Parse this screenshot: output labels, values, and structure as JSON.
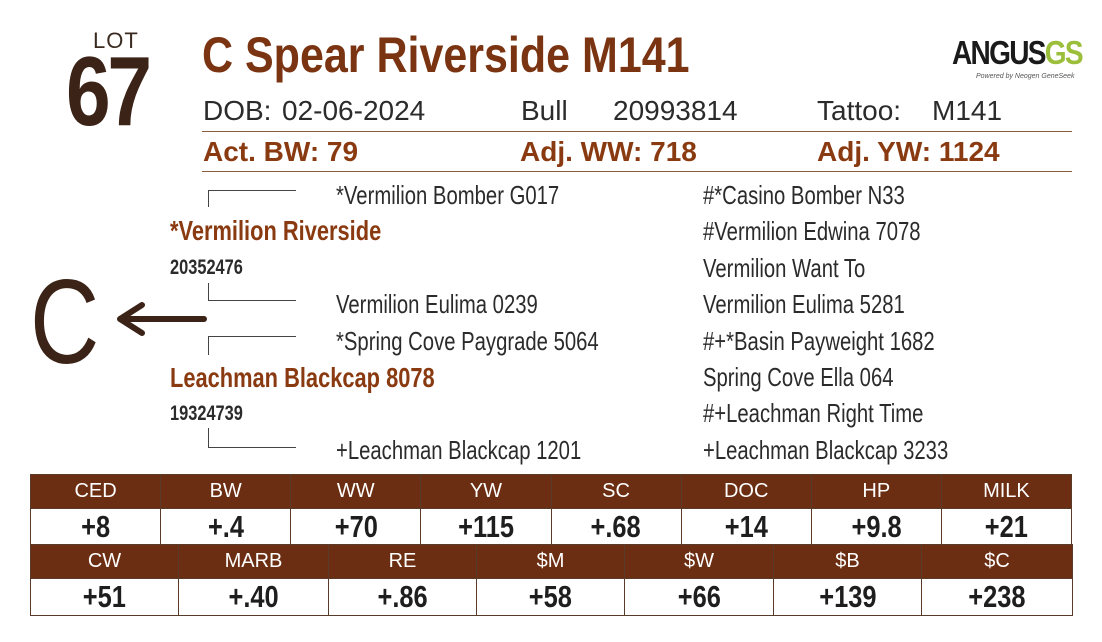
{
  "lot": {
    "label": "LOT",
    "number": "67"
  },
  "title": "C Spear Riverside M141",
  "logo": {
    "brand": "ANGUS",
    "suffix": "GS",
    "tagline": "Powered by Neogen GeneSeek"
  },
  "info": {
    "dob_label": "DOB:",
    "dob": "02-06-2024",
    "sex": "Bull",
    "reg": "20993814",
    "tattoo_label": "Tattoo:",
    "tattoo": "M141"
  },
  "weights": {
    "bw": "Act. BW: 79",
    "ww": "Adj. WW: 718",
    "yw": "Adj. YW: 1124"
  },
  "pedigree": {
    "sire": {
      "name": "*Vermilion Riverside",
      "reg": "20352476"
    },
    "dam": {
      "name": "Leachman Blackcap 8078",
      "reg": "19324739"
    },
    "sire_sire": "*Vermilion Bomber G017",
    "sire_dam": "Vermilion Eulima 0239",
    "dam_sire": "*Spring Cove Paygrade 5064",
    "dam_dam": "+Leachman Blackcap 1201",
    "great": [
      "#*Casino Bomber N33",
      "#Vermilion Edwina 7078",
      "Vermilion Want To",
      "Vermilion Eulima 5281",
      "#+*Basin Payweight 1682",
      "Spring Cove Ella 064",
      "#+Leachman Right Time",
      "+Leachman Blackcap 3233"
    ]
  },
  "dam_marker": {
    "letter": "C"
  },
  "epds_row1": {
    "headers": [
      "CED",
      "BW",
      "WW",
      "YW",
      "SC",
      "DOC",
      "HP",
      "MILK"
    ],
    "values": [
      "+8",
      "+.4",
      "+70",
      "+115",
      "+.68",
      "+14",
      "+9.8",
      "+21"
    ]
  },
  "epds_row2": {
    "headers": [
      "CW",
      "MARB",
      "RE",
      "$M",
      "$W",
      "$B",
      "$C"
    ],
    "values": [
      "+51",
      "+.40",
      "+.86",
      "+58",
      "+66",
      "+139",
      "+238"
    ]
  }
}
